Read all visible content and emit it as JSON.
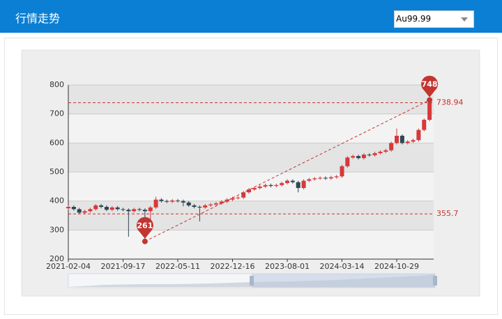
{
  "header": {
    "title": "行情走势",
    "selector": "Au99.99"
  },
  "chart_data": {
    "type": "candlestick",
    "up_color": "#d6393a",
    "down_color": "#2f4554",
    "categories": [
      "2021-02-04",
      null,
      null,
      null,
      null,
      null,
      null,
      null,
      null,
      null,
      "2021-09-17",
      null,
      null,
      null,
      null,
      null,
      null,
      null,
      null,
      null,
      "2022-05-11",
      null,
      null,
      null,
      null,
      null,
      null,
      null,
      null,
      null,
      "2022-12-16",
      null,
      null,
      null,
      null,
      null,
      null,
      null,
      null,
      null,
      "2023-08-01",
      null,
      null,
      null,
      null,
      null,
      null,
      null,
      null,
      null,
      "2024-03-14",
      null,
      null,
      null,
      null,
      null,
      null,
      null,
      null,
      null,
      "2024-10-29",
      null,
      null,
      null,
      null,
      null,
      null
    ],
    "open": [
      375,
      380,
      372,
      360,
      365,
      372,
      385,
      380,
      370,
      378,
      372,
      370,
      365,
      372,
      370,
      365,
      378,
      405,
      400,
      398,
      402,
      400,
      395,
      385,
      380,
      378,
      385,
      388,
      392,
      398,
      405,
      410,
      412,
      430,
      440,
      445,
      450,
      455,
      452,
      455,
      462,
      470,
      465,
      445,
      470,
      475,
      478,
      480,
      478,
      482,
      485,
      520,
      550,
      555,
      548,
      560,
      558,
      565,
      570,
      575,
      600,
      625,
      600,
      605,
      610,
      645,
      680
    ],
    "close": [
      380,
      372,
      360,
      365,
      372,
      385,
      380,
      370,
      378,
      372,
      370,
      365,
      372,
      370,
      365,
      378,
      405,
      400,
      398,
      402,
      400,
      395,
      385,
      380,
      378,
      385,
      388,
      392,
      398,
      405,
      410,
      412,
      430,
      440,
      445,
      450,
      455,
      452,
      455,
      462,
      470,
      465,
      445,
      470,
      475,
      478,
      480,
      478,
      482,
      485,
      520,
      550,
      555,
      548,
      560,
      558,
      565,
      570,
      575,
      600,
      625,
      600,
      605,
      610,
      645,
      680,
      738.94
    ],
    "high": [
      385,
      385,
      377,
      370,
      377,
      390,
      390,
      385,
      383,
      383,
      377,
      375,
      377,
      377,
      375,
      383,
      415,
      410,
      405,
      407,
      407,
      405,
      400,
      390,
      385,
      390,
      393,
      397,
      403,
      410,
      415,
      417,
      435,
      445,
      450,
      455,
      460,
      460,
      460,
      467,
      475,
      475,
      470,
      475,
      480,
      483,
      485,
      485,
      487,
      490,
      525,
      555,
      560,
      560,
      565,
      565,
      570,
      575,
      580,
      605,
      650,
      630,
      610,
      615,
      650,
      685,
      748
    ],
    "low": [
      370,
      367,
      355,
      355,
      360,
      367,
      375,
      365,
      365,
      367,
      365,
      277,
      360,
      365,
      261,
      300,
      373,
      395,
      393,
      393,
      395,
      382,
      380,
      375,
      330,
      373,
      380,
      383,
      387,
      393,
      400,
      405,
      407,
      425,
      435,
      440,
      445,
      447,
      447,
      450,
      457,
      460,
      430,
      440,
      465,
      470,
      473,
      473,
      473,
      477,
      480,
      515,
      545,
      543,
      543,
      553,
      553,
      560,
      565,
      570,
      595,
      595,
      595,
      600,
      605,
      640,
      675
    ],
    "ylim": [
      200,
      800
    ],
    "yticks": [
      200,
      300,
      400,
      500,
      600,
      700,
      800
    ],
    "split_area": true,
    "mark_points": [
      748,
      261
    ],
    "mark_lines": [
      738.94,
      355.7
    ],
    "mark_color": "#c23531"
  }
}
